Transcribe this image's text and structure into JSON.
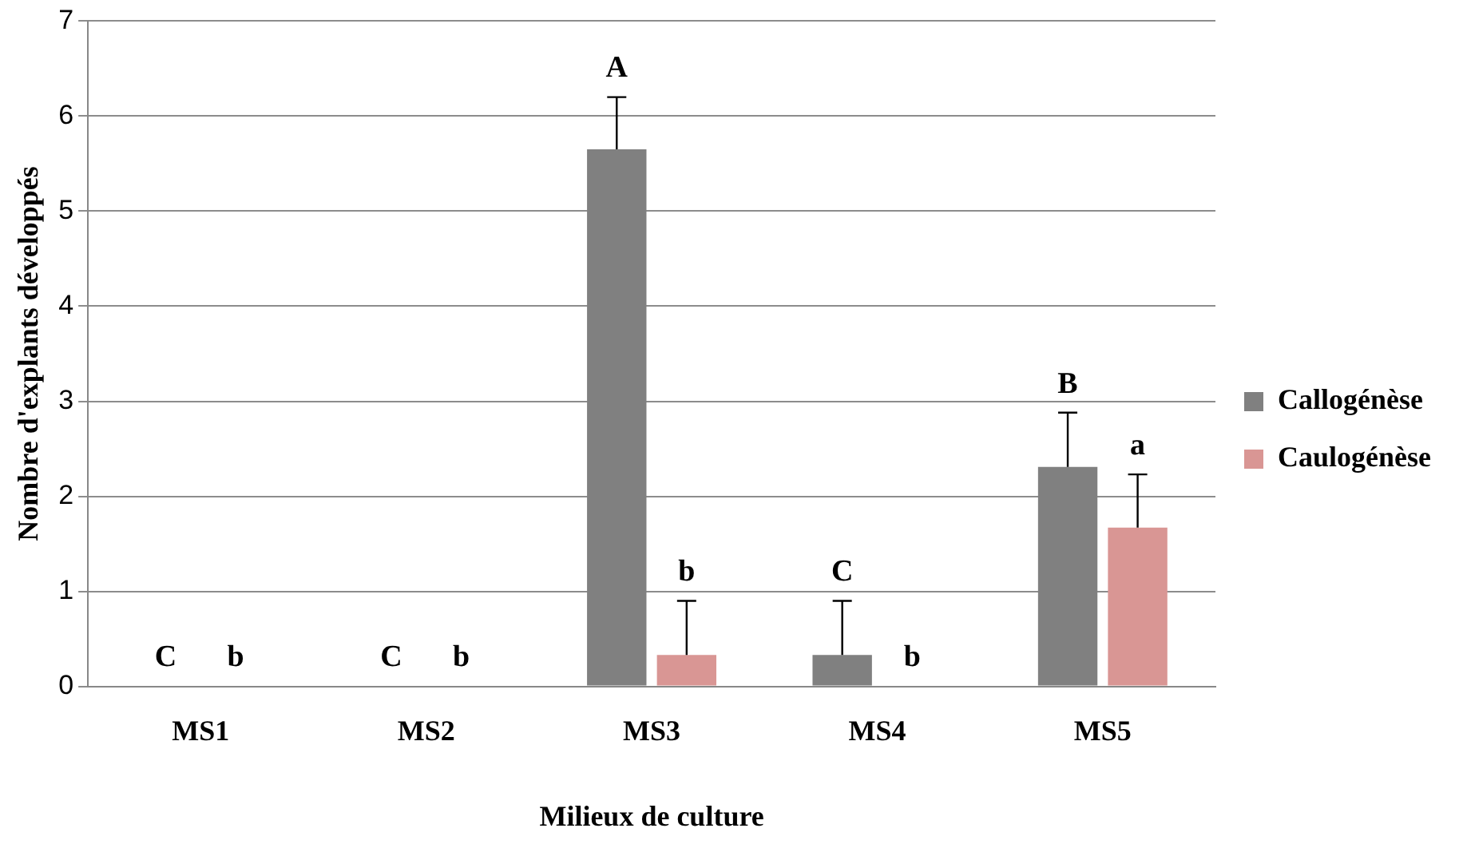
{
  "chart_data": {
    "type": "bar",
    "xlabel": "Milieux de culture",
    "ylabel": "Nombre d'explants développés",
    "categories": [
      "MS1",
      "MS2",
      "MS3",
      "MS4",
      "MS5"
    ],
    "series": [
      {
        "name": "Callogénèse",
        "color": "#808080",
        "values": [
          0,
          0,
          5.65,
          0.33,
          2.31
        ],
        "errors": [
          null,
          null,
          [
            5.65,
            6.2
          ],
          [
            0.33,
            0.9
          ],
          [
            2.31,
            2.88
          ]
        ]
      },
      {
        "name": "Caulogénèse",
        "color": "#d99694",
        "values": [
          0,
          0,
          0.33,
          0,
          1.67
        ],
        "errors": [
          null,
          null,
          [
            0.33,
            0.9
          ],
          null,
          [
            1.67,
            2.23
          ]
        ]
      }
    ],
    "annotations": [
      {
        "text": "C",
        "x": "MS1",
        "y": 0
      },
      {
        "text": "b",
        "x": "MS1",
        "y": 0
      },
      {
        "text": "C",
        "x": "MS2",
        "y": 0
      },
      {
        "text": "b",
        "x": "MS2",
        "y": 0
      },
      {
        "text": "A",
        "x": "MS3",
        "y": 5.65
      },
      {
        "text": "b",
        "x": "MS3",
        "y": 0.9
      },
      {
        "text": "C",
        "x": "MS4",
        "y": 0.33
      },
      {
        "text": "b",
        "x": "MS4",
        "y": 0
      },
      {
        "text": "B",
        "x": "MS5",
        "y": 2.31
      },
      {
        "text": "a",
        "x": "MS5",
        "y": 2.23
      }
    ],
    "ylim": [
      0,
      7
    ],
    "yticks": [
      0,
      1,
      2,
      3,
      4,
      5,
      6,
      7
    ],
    "grid": "y",
    "legend": "right"
  }
}
